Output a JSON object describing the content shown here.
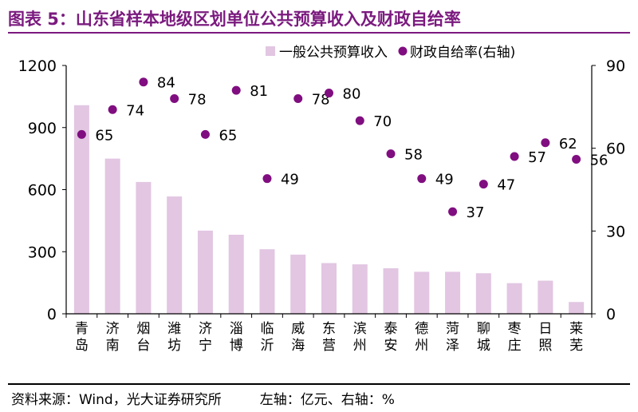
{
  "title": "图表 5：山东省样本地级区划单位公共预算收入及财政自给率",
  "source": {
    "origin": "资料来源：Wind，光大证券研究所",
    "units": "左轴：亿元、右轴：%"
  },
  "colors": {
    "title": "#7b1a7f",
    "bar": "#e2c6e2",
    "dot": "#800e80"
  },
  "chart_data": {
    "type": "bar",
    "categories": [
      "青岛",
      "济南",
      "烟台",
      "潍坊",
      "济宁",
      "淄博",
      "临沂",
      "威海",
      "东营",
      "滨州",
      "泰安",
      "德州",
      "菏泽",
      "聊城",
      "枣庄",
      "日照",
      "莱芜"
    ],
    "series": [
      {
        "name": "一般公共预算收入",
        "type": "bar",
        "axis": "left",
        "values": [
          1008,
          750,
          637,
          567,
          402,
          382,
          312,
          286,
          245,
          239,
          220,
          203,
          203,
          196,
          148,
          160,
          57
        ]
      },
      {
        "name": "财政自给率(右轴)",
        "type": "scatter",
        "axis": "right",
        "values": [
          65,
          74,
          84,
          78,
          65,
          81,
          49,
          78,
          80,
          70,
          58,
          49,
          37,
          47,
          57,
          62,
          56
        ],
        "labels": [
          "65",
          "74",
          "84",
          "78",
          "65",
          "81",
          "49",
          "78",
          "80",
          "70",
          "58",
          "49",
          "37",
          "47",
          "57",
          "62",
          "56"
        ]
      }
    ],
    "y_left": {
      "ylim": [
        0,
        1200
      ],
      "ticks": [
        0,
        300,
        600,
        900,
        1200
      ],
      "tick_labels": [
        "0",
        "300",
        "600",
        "900",
        "1200"
      ]
    },
    "y_right": {
      "ylim": [
        0,
        90
      ],
      "ticks": [
        0,
        30,
        60,
        90
      ],
      "tick_labels": [
        "0",
        "30",
        "60",
        "90"
      ]
    },
    "legend_position": "top-right",
    "grid": false
  }
}
